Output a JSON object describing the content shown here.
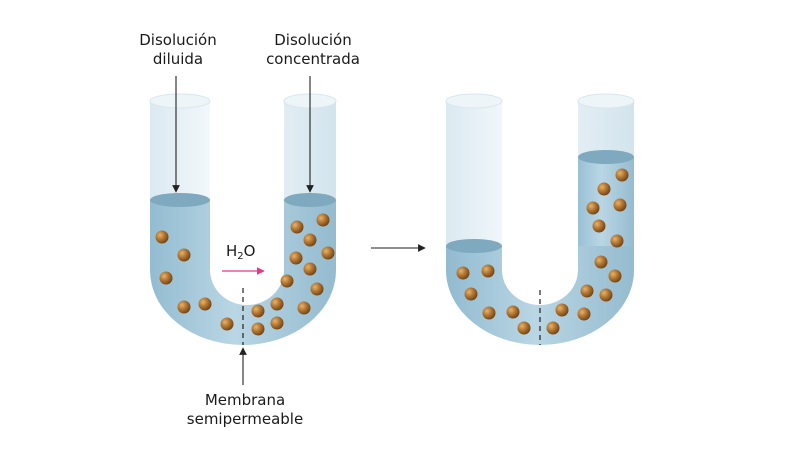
{
  "labels": {
    "diluted_line1": "Disolución",
    "diluted_line2": "diluida",
    "concentrated_line1": "Disolución",
    "concentrated_line2": "concentrada",
    "water_main": "H",
    "water_sub": "2",
    "water_end": "O",
    "membrane_line1": "Membrana",
    "membrane_line2": "semipermeable"
  },
  "colors": {
    "liquid": "#a9cbdc",
    "liquid_top": "#7fa9bf",
    "glass": "#e3eff5",
    "particle": "#a0692a",
    "arrow_water": "#e8388a",
    "arrow": "#222222"
  }
}
